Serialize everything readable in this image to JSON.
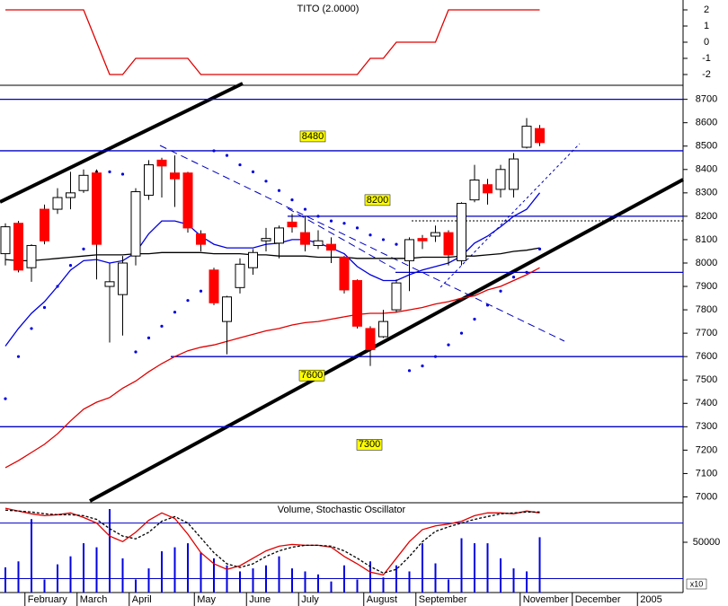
{
  "chart_data": [
    {
      "type": "line",
      "title": "TITO (2.0000)",
      "color": "#e00000",
      "ylim": [
        -2.5,
        2.5
      ],
      "yticks": [
        2,
        1,
        0,
        -1,
        -2
      ],
      "values": [
        2,
        2,
        2,
        2,
        2,
        2,
        2,
        0,
        -2,
        -2,
        -1,
        -1,
        -1,
        -1,
        -1,
        -2,
        -2,
        -2,
        -2,
        -2,
        -2,
        -2,
        -2,
        -2,
        -2,
        -2,
        -2,
        -2,
        -1,
        -1,
        0,
        0,
        0,
        0,
        2,
        2,
        2,
        2,
        2,
        2,
        2,
        2,
        null,
        null,
        null,
        null,
        null,
        null,
        null,
        null,
        null,
        null
      ]
    },
    {
      "type": "candlestick",
      "categories": [
        null,
        null,
        "February",
        null,
        null,
        null,
        "March",
        null,
        null,
        null,
        "April",
        null,
        null,
        null,
        null,
        "May",
        null,
        null,
        null,
        "June",
        null,
        null,
        null,
        "July",
        null,
        null,
        null,
        null,
        "August",
        null,
        null,
        null,
        "September",
        null,
        null,
        null,
        null,
        null,
        null,
        null,
        "November",
        null,
        null,
        null,
        "December",
        null,
        null,
        null,
        null,
        "2005",
        null,
        null
      ],
      "open": [
        8040,
        8170,
        7980,
        8230,
        8230,
        8280,
        8310,
        8385,
        7900,
        7865,
        8030,
        8290,
        8440,
        8385,
        8385,
        8125,
        7970,
        7750,
        7895,
        7980,
        8095,
        8085,
        8175,
        8130,
        8075,
        8080,
        8025,
        7925,
        7720,
        7685,
        7800,
        8010,
        8105,
        8115,
        8130,
        8010,
        8270,
        8335,
        8315,
        8315,
        8495,
        8575,
        null,
        null,
        null,
        null,
        null,
        null,
        null,
        null,
        null,
        null
      ],
      "high": [
        8170,
        8180,
        8080,
        8250,
        8320,
        8390,
        8400,
        8400,
        8000,
        8030,
        8320,
        8440,
        8450,
        8460,
        8390,
        8140,
        7980,
        7860,
        8020,
        8060,
        8150,
        8160,
        8210,
        8200,
        8140,
        8110,
        8030,
        7930,
        7730,
        7800,
        7930,
        8110,
        8120,
        8160,
        8140,
        8260,
        8420,
        8360,
        8420,
        8470,
        8620,
        8590,
        null,
        null,
        null,
        null,
        null,
        null,
        null,
        null,
        null,
        null
      ],
      "low": [
        7990,
        7960,
        7920,
        8080,
        8210,
        8230,
        8300,
        7930,
        7660,
        7690,
        7990,
        8270,
        8280,
        8240,
        8130,
        8050,
        7820,
        7610,
        7870,
        7950,
        8050,
        8020,
        8130,
        8050,
        8060,
        8000,
        7870,
        7720,
        7560,
        7680,
        7790,
        7880,
        8060,
        8090,
        7990,
        7990,
        8260,
        8250,
        8280,
        8280,
        8490,
        8500,
        null,
        null,
        null,
        null,
        null,
        null,
        null,
        null,
        null,
        null
      ],
      "close": [
        8155,
        7970,
        8075,
        8095,
        8280,
        8300,
        8375,
        8080,
        7920,
        8000,
        8305,
        8420,
        8415,
        8360,
        8150,
        8080,
        7830,
        7855,
        7995,
        8045,
        8105,
        8150,
        8155,
        8080,
        8095,
        8055,
        7885,
        7730,
        7630,
        7750,
        7915,
        8100,
        8095,
        8130,
        8035,
        8255,
        8355,
        8300,
        8400,
        8445,
        8585,
        8515,
        null,
        null,
        null,
        null,
        null,
        null,
        null,
        null,
        null,
        null
      ],
      "up_color": "#ffffff",
      "down_color": "#ff0000",
      "ylim": [
        6975,
        8760
      ],
      "yticks": [
        7000,
        7100,
        7200,
        7300,
        7400,
        7500,
        7600,
        7700,
        7800,
        7900,
        8000,
        8100,
        8200,
        8300,
        8400,
        8500,
        8600,
        8700
      ],
      "levels": [
        8700,
        7960
      ],
      "labeled_levels": [
        8480,
        8200,
        7600,
        7300
      ],
      "level_color": "#0000c0",
      "series": [
        {
          "color": "#000000",
          "values": [
            8015,
            8010,
            8010,
            8015,
            8020,
            8025,
            8030,
            8035,
            8035,
            8035,
            8040,
            8040,
            8045,
            8045,
            8045,
            8045,
            8040,
            8040,
            8040,
            8035,
            8035,
            8030,
            8030,
            8030,
            8025,
            8025,
            8025,
            8020,
            8020,
            8020,
            8020,
            8020,
            8025,
            8025,
            8025,
            8030,
            8030,
            8035,
            8040,
            8050,
            8055,
            8065,
            null,
            null,
            null,
            null,
            null,
            null,
            null,
            null,
            null,
            null
          ]
        },
        {
          "color": "#0000e0",
          "values": [
            7645,
            7720,
            7785,
            7835,
            7900,
            7970,
            8010,
            8015,
            8000,
            8010,
            8045,
            8125,
            8180,
            8180,
            8165,
            8115,
            8080,
            8065,
            8065,
            8065,
            8080,
            8085,
            8100,
            8100,
            8085,
            8065,
            8040,
            7985,
            7950,
            7925,
            7925,
            7950,
            7970,
            7985,
            8000,
            8030,
            8085,
            8115,
            8155,
            8200,
            8230,
            8300,
            null,
            null,
            null,
            null,
            null,
            null,
            null,
            null,
            null,
            null
          ]
        },
        {
          "color": "#e00000",
          "values": [
            7125,
            7155,
            7190,
            7225,
            7270,
            7325,
            7375,
            7405,
            7425,
            7465,
            7495,
            7535,
            7570,
            7600,
            7625,
            7640,
            7650,
            7665,
            7680,
            7695,
            7710,
            7720,
            7735,
            7745,
            7750,
            7760,
            7770,
            7780,
            7785,
            7785,
            7790,
            7800,
            7810,
            7825,
            7835,
            7850,
            7860,
            7885,
            7900,
            7925,
            7950,
            7980,
            null,
            null,
            null,
            null,
            null,
            null,
            null,
            null,
            null,
            null
          ]
        }
      ],
      "sar": {
        "color": "#0000e0",
        "values": [
          7420,
          7600,
          7720,
          7810,
          7900,
          7990,
          8060,
          8390,
          8390,
          8380,
          7620,
          7680,
          7730,
          7790,
          7840,
          7880,
          8480,
          8460,
          8420,
          8390,
          8350,
          8310,
          8270,
          8230,
          8200,
          8180,
          8170,
          8150,
          8120,
          8100,
          8080,
          7540,
          7560,
          7600,
          7650,
          7700,
          7760,
          7820,
          7880,
          7940,
          7960,
          8060,
          null,
          null,
          null,
          null,
          null,
          null,
          null,
          null,
          null,
          null
        ]
      }
    },
    {
      "type": "volume",
      "title": "Volume, Stochastic Oscillator",
      "color": "#0000e0",
      "ylim": [
        0,
        87500
      ],
      "yticks": [
        50000
      ],
      "unit_label": "x10",
      "values": [
        25000,
        31000,
        73000,
        13000,
        28000,
        36000,
        49000,
        45000,
        83000,
        34000,
        13000,
        24000,
        41000,
        45000,
        49000,
        40000,
        34000,
        27000,
        21000,
        24000,
        27000,
        36000,
        24000,
        21000,
        18000,
        11000,
        27000,
        13000,
        31000,
        15000,
        27000,
        21000,
        49000,
        29000,
        13000,
        54000,
        49000,
        49000,
        34000,
        24000,
        21000,
        55000,
        null,
        null,
        null,
        null,
        null,
        null,
        null,
        null,
        null,
        null
      ],
      "y2lim": [
        5,
        100
      ],
      "y2lines": [
        80,
        20
      ],
      "series": [
        {
          "color": "#e00000",
          "axis": "y2",
          "values": [
            96,
            93,
            90,
            88,
            89,
            91,
            86,
            80,
            66,
            60,
            70,
            83,
            91,
            85,
            68,
            48,
            36,
            30,
            34,
            42,
            50,
            55,
            57,
            56,
            56,
            54,
            44,
            36,
            27,
            24,
            42,
            60,
            73,
            77,
            79,
            82,
            88,
            91,
            91,
            90,
            93,
            91,
            null,
            null,
            null,
            null,
            null,
            null,
            null,
            null,
            null,
            null
          ]
        },
        {
          "color": "#000000",
          "axis": "y2",
          "dash": true,
          "values": [
            94,
            93,
            92,
            90,
            89,
            89,
            88,
            84,
            74,
            66,
            63,
            70,
            82,
            87,
            80,
            64,
            48,
            36,
            32,
            36,
            44,
            50,
            54,
            56,
            56,
            55,
            50,
            42,
            33,
            26,
            30,
            44,
            60,
            71,
            76,
            80,
            84,
            87,
            90,
            91,
            92,
            92,
            null,
            null,
            null,
            null,
            null,
            null,
            null,
            null,
            null,
            null
          ]
        }
      ]
    }
  ]
}
